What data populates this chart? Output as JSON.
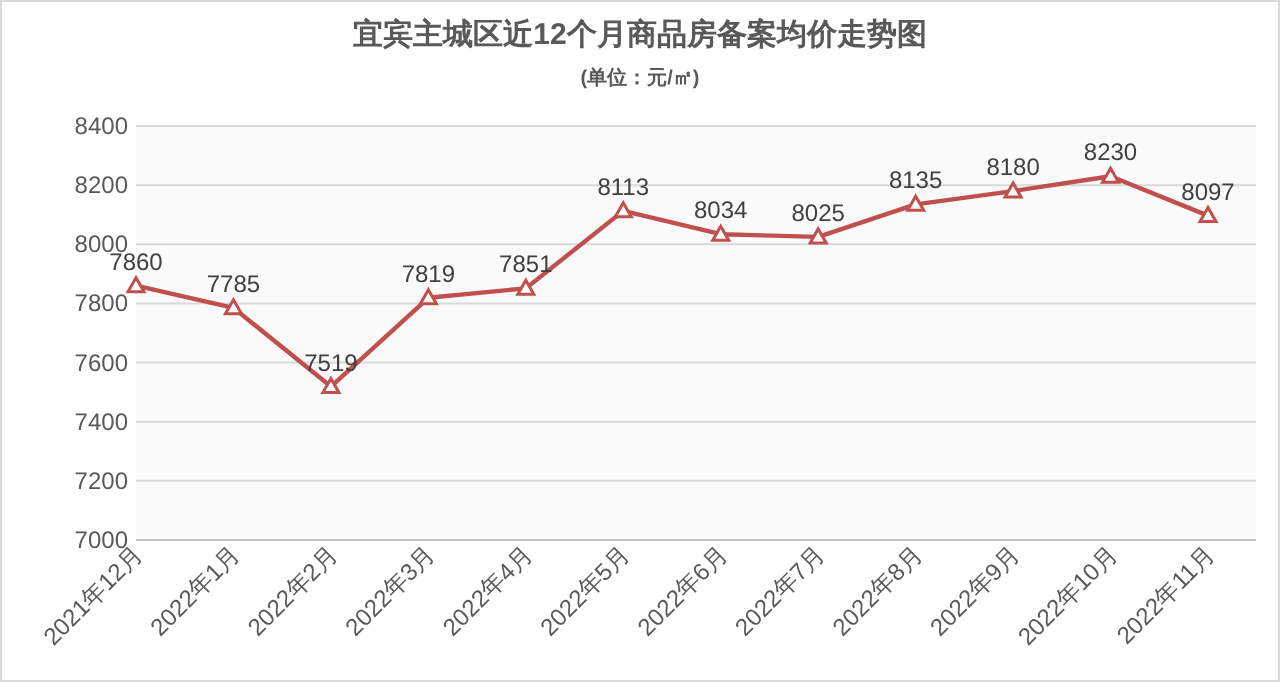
{
  "chart_data": {
    "type": "line",
    "title": "宜宾主城区近12个月商品房备案均价走势图",
    "subtitle": "(单位：元/㎡)",
    "categories": [
      "2021年12月",
      "2022年1月",
      "2022年2月",
      "2022年3月",
      "2022年4月",
      "2022年5月",
      "2022年6月",
      "2022年7月",
      "2022年8月",
      "2022年9月",
      "2022年10月",
      "2022年11月"
    ],
    "series": [
      {
        "color": "#c0504d",
        "values": [
          7860,
          7785,
          7519,
          7819,
          7851,
          8113,
          8034,
          8025,
          8135,
          8180,
          8230,
          8097
        ]
      }
    ],
    "ylim": [
      7000,
      8400
    ],
    "yticks": [
      7000,
      7200,
      7400,
      7600,
      7800,
      8000,
      8200,
      8400
    ],
    "grid": "y",
    "marker": "triangle",
    "data_labels": true
  }
}
